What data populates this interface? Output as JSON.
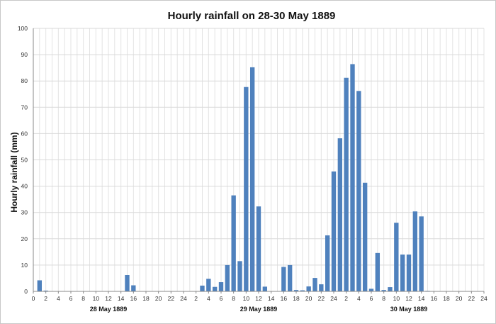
{
  "chart_data": {
    "type": "bar",
    "title": "Hourly rainfall on 28-30 May 1889",
    "xlabel": "",
    "ylabel": "Hourly rainfall (mm)",
    "ylim": [
      0,
      100
    ],
    "yticks": [
      "0",
      "10",
      "20",
      "30",
      "40",
      "50",
      "60",
      "70",
      "80",
      "90",
      "100"
    ],
    "xticks": [
      "0",
      "2",
      "4",
      "6",
      "8",
      "10",
      "12",
      "14",
      "16",
      "18",
      "20",
      "22",
      "24",
      "2",
      "4",
      "6",
      "8",
      "10",
      "12",
      "14",
      "16",
      "18",
      "20",
      "22",
      "24",
      "2",
      "4",
      "6",
      "8",
      "10",
      "12",
      "14",
      "16",
      "18",
      "20",
      "22",
      "24"
    ],
    "day_labels": [
      "28 May 1889",
      "29 May 1889",
      "30 May 1889"
    ],
    "grid": true,
    "color": "#4f81bd",
    "hours": [
      1,
      2,
      15,
      16,
      27,
      28,
      29,
      30,
      31,
      32,
      33,
      34,
      35,
      36,
      37,
      40,
      41,
      42,
      43,
      44,
      45,
      46,
      47,
      48,
      49,
      50,
      51,
      52,
      53,
      54,
      55,
      56,
      57,
      58,
      59,
      60,
      61,
      62,
      63
    ],
    "values": [
      4.2,
      0.3,
      6.2,
      2.3,
      2.2,
      4.8,
      1.7,
      3.5,
      10.0,
      36.5,
      11.5,
      77.7,
      85.2,
      32.3,
      1.8,
      9.3,
      10.0,
      0.5,
      0.4,
      1.9,
      5.1,
      2.7,
      21.3,
      45.6,
      58.2,
      81.2,
      86.4,
      76.2,
      41.3,
      1.0,
      14.6,
      0.5,
      1.6,
      26.1,
      14.0,
      14.0,
      30.4,
      28.5,
      0.2
    ]
  }
}
